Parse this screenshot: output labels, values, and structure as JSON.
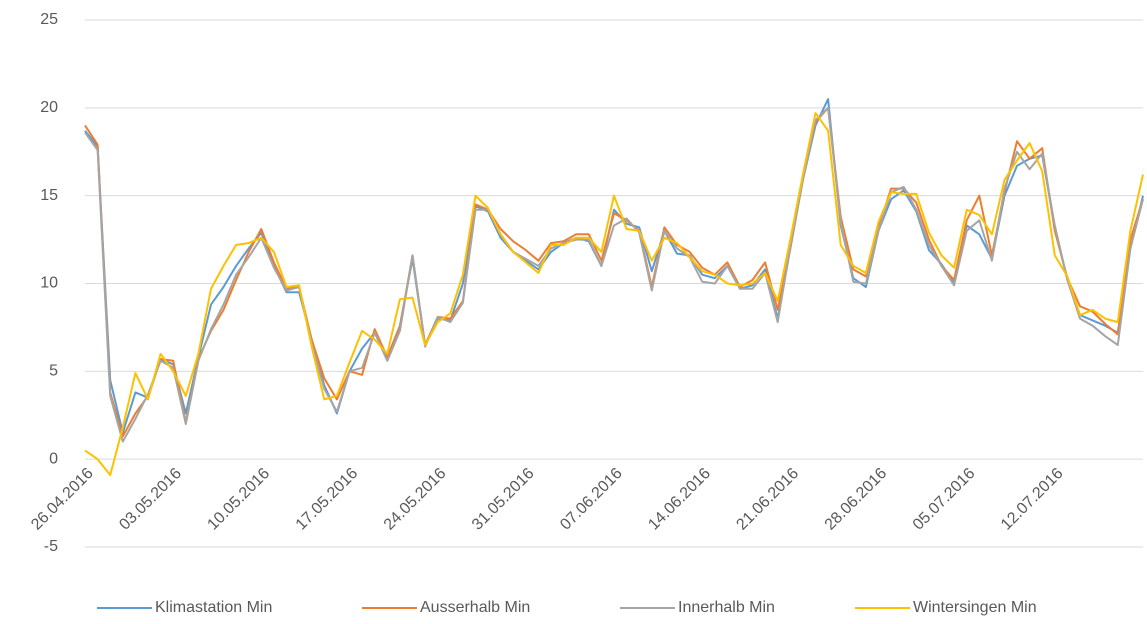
{
  "chart_data": {
    "type": "line",
    "categories": [
      "26.04.2016",
      null,
      null,
      null,
      null,
      null,
      null,
      "03.05.2016",
      null,
      null,
      null,
      null,
      null,
      null,
      "10.05.2016",
      null,
      null,
      null,
      null,
      null,
      null,
      "17.05.2016",
      null,
      null,
      null,
      null,
      null,
      null,
      "24.05.2016",
      null,
      null,
      null,
      null,
      null,
      null,
      "31.05.2016",
      null,
      null,
      null,
      null,
      null,
      null,
      "07.06.2016",
      null,
      null,
      null,
      null,
      null,
      null,
      "14.06.2016",
      null,
      null,
      null,
      null,
      null,
      null,
      "21.06.2016",
      null,
      null,
      null,
      null,
      null,
      null,
      "28.06.2016",
      null,
      null,
      null,
      null,
      null,
      null,
      "05.07.2016",
      null,
      null,
      null,
      null,
      null,
      null,
      "12.07.2016",
      null,
      null,
      null,
      null,
      null,
      null,
      null
    ],
    "series": [
      {
        "name": "Klimastation Min",
        "color": "#5B9BD5",
        "values": [
          18.7,
          17.8,
          4.5,
          1.5,
          3.8,
          3.5,
          5.7,
          5.4,
          2.6,
          5.8,
          8.8,
          9.8,
          11.0,
          12.0,
          12.9,
          11.0,
          9.5,
          9.5,
          6.8,
          4.2,
          2.6,
          5.0,
          6.3,
          7.2,
          5.8,
          7.6,
          11.4,
          6.5,
          8.0,
          7.9,
          10.0,
          14.4,
          14.1,
          12.6,
          11.8,
          11.3,
          10.8,
          11.8,
          12.3,
          12.6,
          12.4,
          11.0,
          14.2,
          13.4,
          13.2,
          10.7,
          13.0,
          11.7,
          11.6,
          10.5,
          10.3,
          11.0,
          9.7,
          9.9,
          10.8,
          8.0,
          12.0,
          15.9,
          19.0,
          20.5,
          13.3,
          10.3,
          9.8,
          13.0,
          14.8,
          15.3,
          14.1,
          11.9,
          11.1,
          10.0,
          13.3,
          12.8,
          11.4,
          15.0,
          16.7,
          17.1,
          17.3,
          13.2,
          10.2,
          8.2,
          7.9,
          7.6,
          7.2,
          12.0,
          15.0
        ]
      },
      {
        "name": "Ausserhalb Min",
        "color": "#ED7D31",
        "values": [
          19.0,
          17.9,
          3.8,
          1.3,
          2.6,
          3.6,
          5.7,
          5.6,
          2.1,
          5.7,
          7.3,
          8.5,
          10.2,
          11.8,
          13.1,
          11.2,
          9.7,
          9.8,
          6.8,
          4.6,
          3.4,
          5.0,
          4.8,
          7.4,
          5.8,
          7.5,
          11.6,
          6.5,
          8.1,
          8.0,
          9.0,
          14.5,
          14.2,
          13.1,
          12.4,
          11.9,
          11.3,
          12.3,
          12.4,
          12.8,
          12.8,
          11.3,
          14.0,
          13.6,
          13.0,
          9.8,
          13.2,
          12.2,
          11.8,
          10.9,
          10.5,
          11.2,
          9.8,
          10.2,
          11.2,
          8.5,
          12.0,
          16.0,
          19.2,
          20.0,
          13.8,
          10.8,
          10.4,
          13.2,
          15.4,
          15.4,
          14.6,
          12.5,
          11.0,
          10.2,
          13.6,
          15.0,
          11.6,
          15.2,
          18.1,
          17.1,
          17.7,
          13.0,
          10.3,
          8.7,
          8.4,
          7.7,
          7.1,
          12.5,
          14.8
        ]
      },
      {
        "name": "Innerhalb Min",
        "color": "#A5A5A5",
        "values": [
          18.6,
          17.6,
          3.6,
          1.0,
          2.3,
          3.7,
          5.6,
          5.2,
          2.0,
          5.6,
          7.4,
          8.8,
          10.5,
          11.5,
          12.6,
          10.9,
          9.6,
          9.8,
          6.6,
          4.0,
          2.7,
          5.0,
          5.2,
          7.2,
          5.6,
          7.3,
          11.6,
          6.4,
          8.1,
          7.8,
          8.9,
          14.2,
          14.2,
          12.8,
          11.8,
          11.4,
          11.0,
          12.0,
          12.3,
          12.5,
          12.5,
          11.0,
          13.3,
          13.7,
          12.9,
          9.6,
          13.0,
          12.0,
          11.5,
          10.1,
          10.0,
          11.0,
          9.7,
          9.7,
          10.6,
          7.8,
          12.1,
          15.9,
          19.3,
          20.0,
          13.5,
          10.1,
          10.0,
          13.0,
          15.2,
          15.5,
          14.2,
          12.2,
          11.0,
          9.9,
          13.0,
          13.6,
          11.3,
          15.4,
          17.5,
          16.5,
          17.4,
          13.3,
          10.2,
          8.0,
          7.6,
          7.0,
          6.5,
          12.0,
          14.8
        ]
      },
      {
        "name": "Wintersingen Min",
        "color": "#FFC000",
        "values": [
          0.5,
          0.0,
          -0.9,
          1.8,
          4.9,
          3.4,
          6.0,
          5.0,
          3.6,
          6.0,
          9.7,
          11.0,
          12.2,
          12.3,
          12.6,
          11.8,
          9.8,
          9.9,
          6.4,
          3.4,
          3.6,
          5.5,
          7.3,
          6.8,
          6.0,
          9.1,
          9.2,
          6.5,
          7.8,
          8.3,
          10.5,
          15.0,
          14.3,
          12.8,
          11.8,
          11.2,
          10.6,
          12.2,
          12.2,
          12.6,
          12.6,
          11.8,
          15.0,
          13.1,
          13.0,
          11.3,
          12.6,
          12.3,
          11.5,
          10.7,
          10.5,
          10.0,
          9.9,
          10.0,
          10.6,
          9.0,
          12.5,
          16.2,
          19.7,
          18.7,
          12.2,
          11.0,
          10.6,
          13.5,
          15.2,
          15.1,
          15.1,
          12.9,
          11.6,
          10.9,
          14.2,
          13.9,
          12.8,
          15.9,
          17.0,
          18.0,
          16.4,
          11.6,
          10.4,
          8.2,
          8.5,
          8.0,
          7.8,
          13.0,
          16.2
        ]
      }
    ],
    "ylim": [
      -5,
      25
    ],
    "yticks": [
      -5,
      0,
      5,
      10,
      15,
      20,
      25
    ],
    "grid": true,
    "legend": "bottom"
  }
}
